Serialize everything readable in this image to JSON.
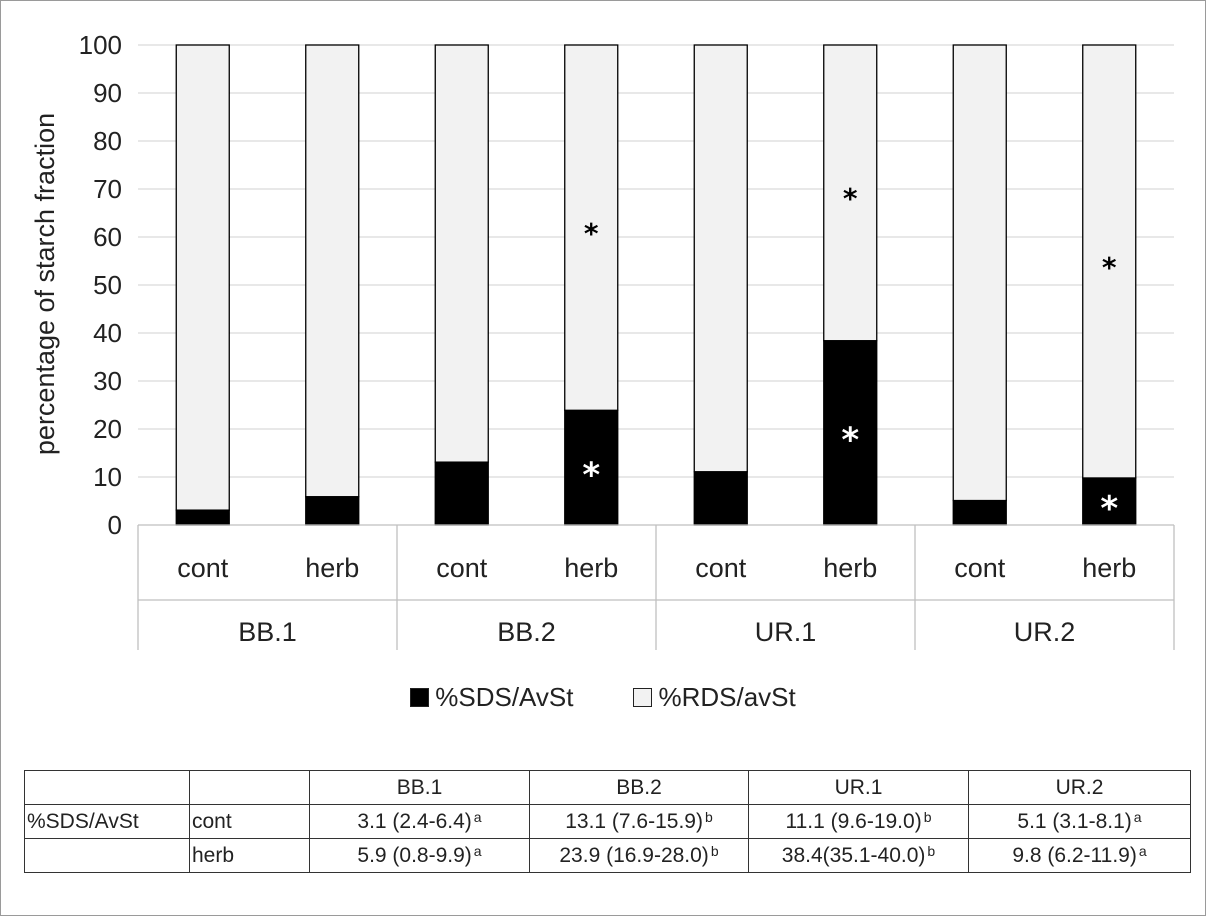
{
  "chart_data": {
    "type": "bar",
    "stacked": true,
    "ylabel": "percentage of starch fraction",
    "ylim": [
      0,
      100
    ],
    "yticks": [
      0,
      10,
      20,
      30,
      40,
      50,
      60,
      70,
      80,
      90,
      100
    ],
    "grid": true,
    "legend_position": "bottom",
    "groups": [
      "BB.1",
      "BB.2",
      "UR.1",
      "UR.2"
    ],
    "categories": [
      "cont",
      "herb",
      "cont",
      "herb",
      "cont",
      "herb",
      "cont",
      "herb"
    ],
    "series": [
      {
        "name": "%SDS/AvSt",
        "color": "#000000",
        "values": [
          3.1,
          5.9,
          13.1,
          23.9,
          11.1,
          38.4,
          5.1,
          9.8
        ]
      },
      {
        "name": "%RDS/avSt",
        "color": "#f2f2f2",
        "values": [
          96.9,
          94.1,
          86.9,
          76.1,
          88.9,
          61.6,
          94.9,
          90.2
        ]
      }
    ],
    "annotations": [
      {
        "text": "*",
        "bar_index": 3,
        "series": "%SDS/AvSt",
        "color": "#ffffff"
      },
      {
        "text": "*",
        "bar_index": 3,
        "series": "%RDS/avSt",
        "color": "#000000"
      },
      {
        "text": "*",
        "bar_index": 5,
        "series": "%SDS/AvSt",
        "color": "#ffffff"
      },
      {
        "text": "*",
        "bar_index": 5,
        "series": "%RDS/avSt",
        "color": "#000000"
      },
      {
        "text": "*",
        "bar_index": 7,
        "series": "%SDS/AvSt",
        "color": "#ffffff"
      },
      {
        "text": "*",
        "bar_index": 7,
        "series": "%RDS/avSt",
        "color": "#000000"
      }
    ]
  },
  "table": {
    "header": [
      "",
      "",
      "BB.1",
      "BB.2",
      "UR.1",
      "UR.2"
    ],
    "rows": [
      {
        "label": "%SDS/AvSt",
        "treatment": "cont",
        "cells": [
          {
            "value": "3.1 (2.4-6.4)",
            "sup": "a"
          },
          {
            "value": "13.1 (7.6-15.9)",
            "sup": "b"
          },
          {
            "value": "11.1 (9.6-19.0)",
            "sup": "b"
          },
          {
            "value": "5.1 (3.1-8.1)",
            "sup": "a"
          }
        ]
      },
      {
        "label": "",
        "treatment": "herb",
        "cells": [
          {
            "value": "5.9 (0.8-9.9)",
            "sup": "a"
          },
          {
            "value": "23.9 (16.9-28.0)",
            "sup": "b"
          },
          {
            "value": "38.4(35.1-40.0)",
            "sup": "b"
          },
          {
            "value": "9.8 (6.2-11.9)",
            "sup": "a"
          }
        ]
      }
    ]
  }
}
